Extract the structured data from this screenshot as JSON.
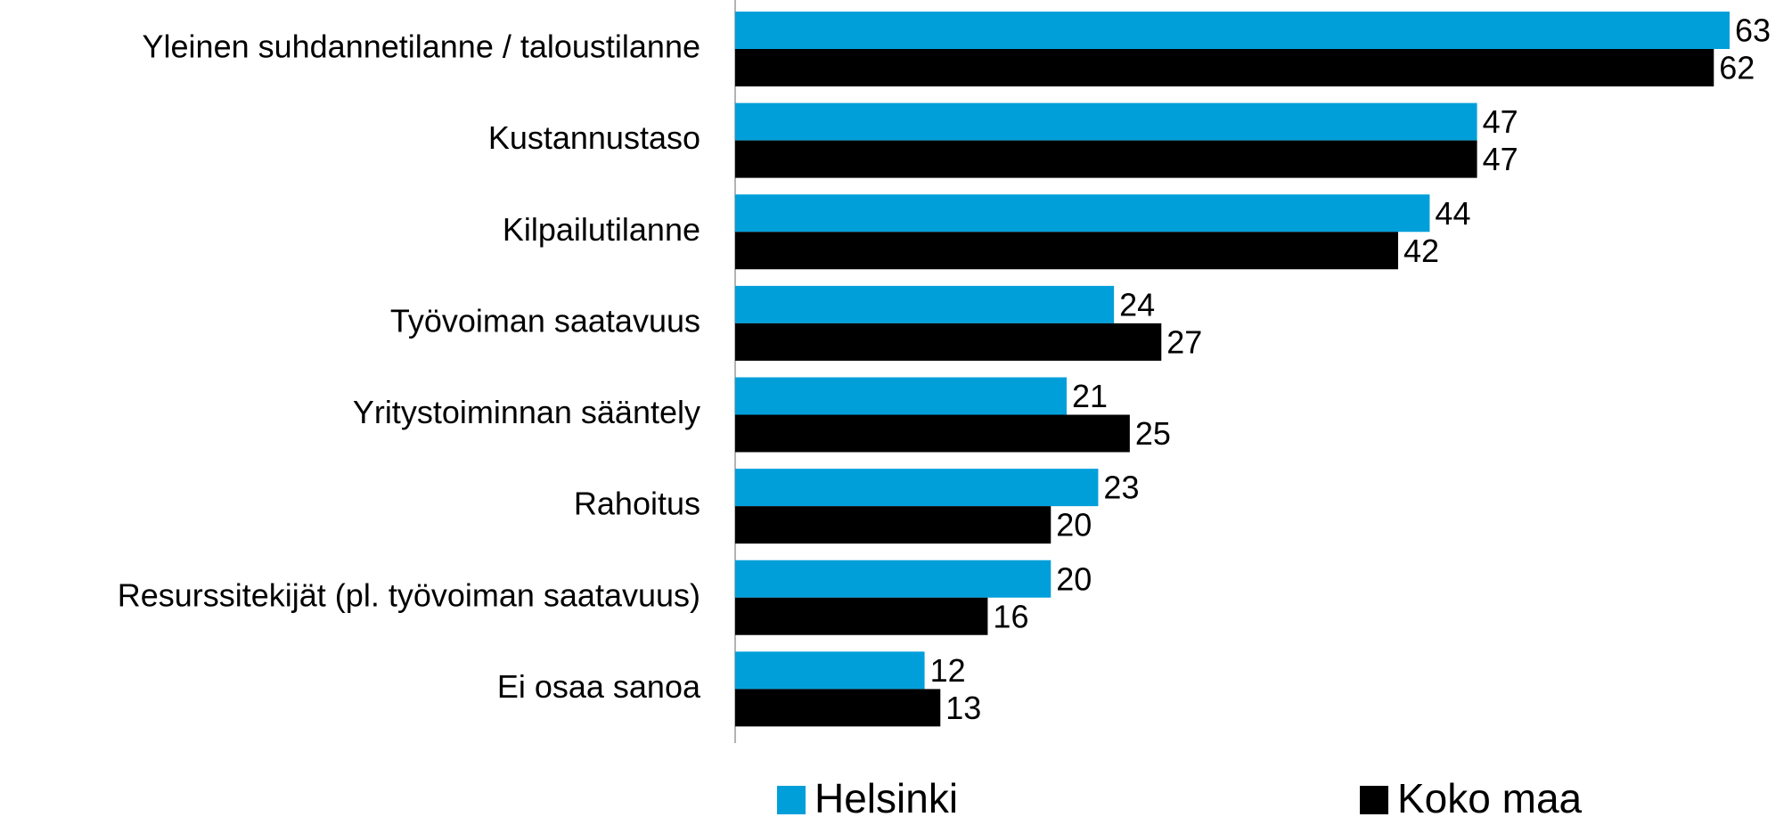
{
  "chart_data": {
    "type": "bar",
    "orientation": "horizontal",
    "categories": [
      "Yleinen suhdannetilanne / taloustilanne",
      "Kustannustaso",
      "Kilpailutilanne",
      "Työvoiman saatavuus",
      "Yritystoiminnan sääntely",
      "Rahoitus",
      "Resurssitekijät (pl. työvoiman saatavuus)",
      "Ei osaa sanoa"
    ],
    "series": [
      {
        "name": "Helsinki",
        "color": "#009fda",
        "values": [
          63,
          47,
          44,
          24,
          21,
          23,
          20,
          12
        ]
      },
      {
        "name": "Koko maa",
        "color": "#000000",
        "values": [
          62,
          47,
          42,
          27,
          25,
          20,
          16,
          13
        ]
      }
    ],
    "legend": "bottom"
  }
}
